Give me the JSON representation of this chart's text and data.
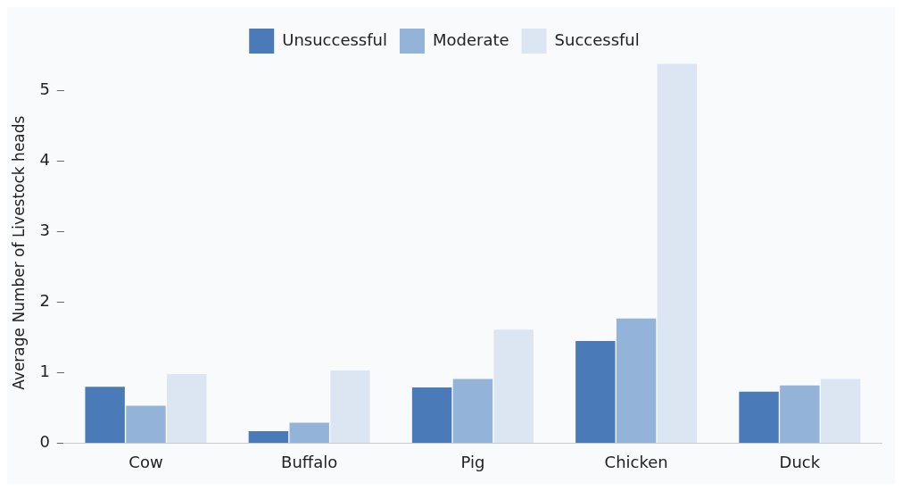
{
  "chart_data": {
    "type": "bar",
    "ylabel": "Average Number of Livestock heads",
    "categories": [
      "Cow",
      "Buffalo",
      "Pig",
      "Chicken",
      "Duck"
    ],
    "series": [
      {
        "name": "Unsuccessful",
        "color": "#4a7ab8",
        "values": [
          0.8,
          0.17,
          0.79,
          1.45,
          0.73
        ]
      },
      {
        "name": "Moderate",
        "color": "#94b3d8",
        "values": [
          0.53,
          0.29,
          0.91,
          1.77,
          0.82
        ]
      },
      {
        "name": "Successful",
        "color": "#dce6f2",
        "values": [
          0.98,
          1.03,
          1.61,
          5.38,
          0.91
        ]
      }
    ],
    "ylim": [
      0,
      5.4
    ],
    "yticks": [
      0,
      1,
      2,
      3,
      4,
      5
    ],
    "grid": false,
    "legend": "top"
  }
}
